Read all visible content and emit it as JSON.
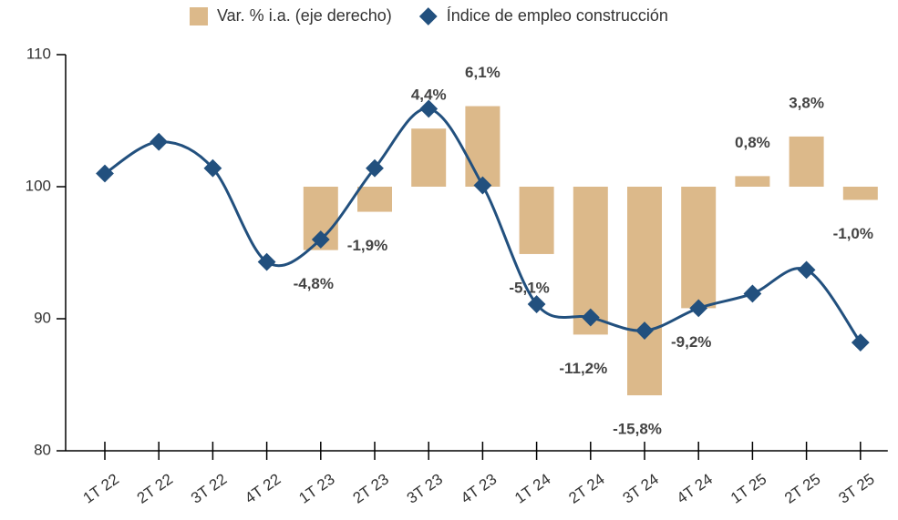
{
  "chart_data": {
    "type": "bar-line",
    "categories": [
      "1T 22",
      "2T 22",
      "3T 22",
      "4T 22",
      "1T 23",
      "2T 23",
      "3T 23",
      "4T 23",
      "1T 24",
      "2T 24",
      "3T 24",
      "4T 24",
      "1T 25",
      "2T 25",
      "3T 25"
    ],
    "series": [
      {
        "name": "Var. % i.a. (eje derecho)",
        "type": "bar",
        "axis": "y2",
        "color": "#dcb98a",
        "values": [
          null,
          null,
          null,
          null,
          -4.8,
          -1.9,
          4.4,
          6.1,
          -5.1,
          -11.2,
          -15.8,
          -9.2,
          0.8,
          3.8,
          -1.0
        ],
        "value_labels": [
          null,
          null,
          null,
          null,
          "-4,8%",
          "-1,9%",
          "4,4%",
          "6,1%",
          "-5,1%",
          "-11,2%",
          "-15,8%",
          "-9,2%",
          "0,8%",
          "3,8%",
          "-1,0%"
        ]
      },
      {
        "name": "Índice de empleo construcción",
        "type": "line",
        "color": "#22507e",
        "values": [
          101.0,
          103.4,
          101.4,
          94.3,
          96.0,
          101.4,
          105.9,
          100.1,
          91.1,
          90.1,
          89.1,
          90.8,
          91.9,
          93.7,
          88.2
        ]
      }
    ],
    "ylim": [
      80,
      110
    ],
    "yticks": [
      80,
      90,
      100,
      110
    ],
    "y2lim": [
      -20,
      10
    ]
  }
}
